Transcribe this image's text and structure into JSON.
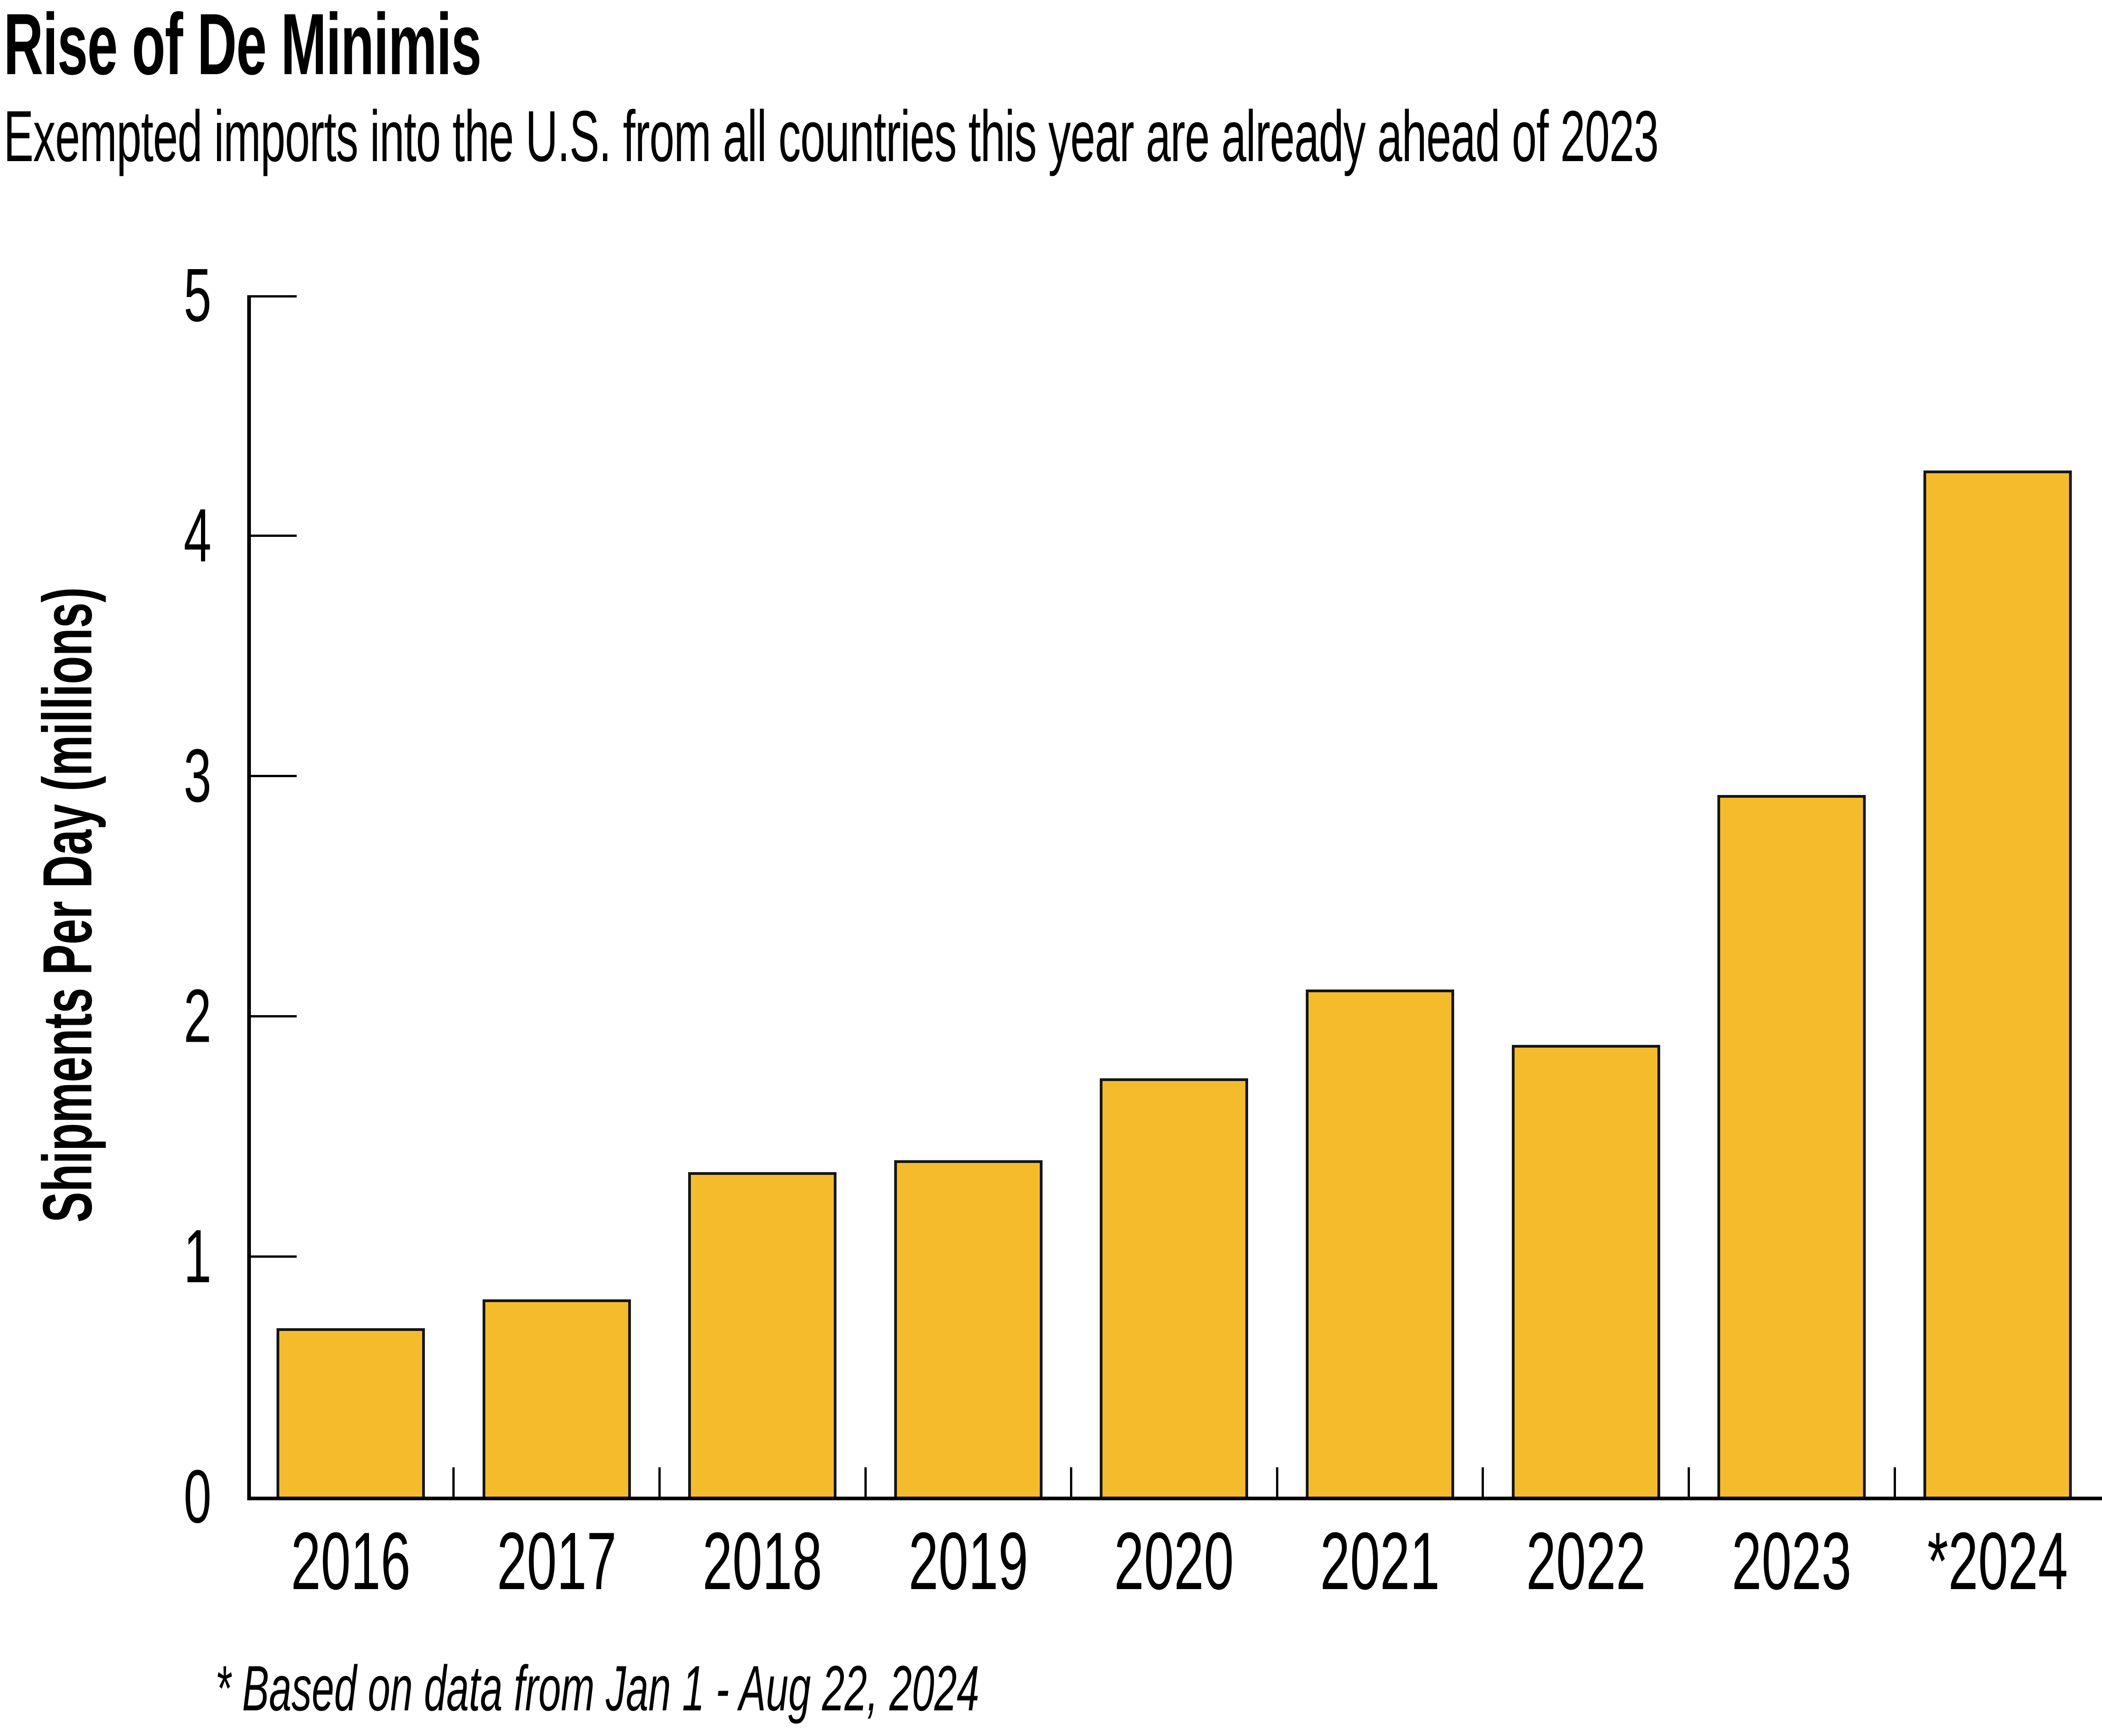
{
  "title": "Rise of De Minimis",
  "subtitle": "Exempted imports into the U.S. from all countries this year are already ahead of 2023",
  "footnote": "* Based on data from Jan 1 - Aug 22, 2024",
  "colors": {
    "bar_fill": "#F4BC2C",
    "bar_border": "#161616",
    "axis": "#000000",
    "text": "#000000",
    "background": "#FFFFFF"
  },
  "chart_data": {
    "type": "bar",
    "categories": [
      "2016",
      "2017",
      "2018",
      "2019",
      "2020",
      "2021",
      "2022",
      "2023",
      "*2024"
    ],
    "values": [
      0.7,
      0.82,
      1.35,
      1.4,
      1.74,
      2.11,
      1.88,
      2.92,
      4.27
    ],
    "title": "Rise of De Minimis",
    "subtitle": "Exempted imports into the U.S. from all countries this year are already ahead of 2023",
    "xlabel": "",
    "ylabel": "Shipments Per Day (millions)",
    "ylim": [
      0,
      5
    ],
    "yticks": [
      0,
      1,
      2,
      3,
      4,
      5
    ],
    "grid": false,
    "legend": false,
    "annotation": "* Based on data from Jan 1 - Aug 22, 2024"
  }
}
